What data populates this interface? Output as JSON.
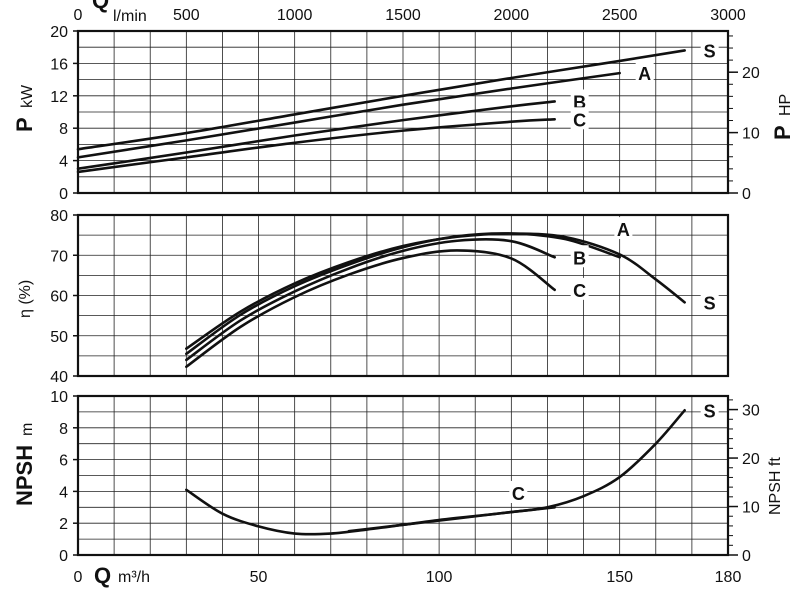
{
  "chart_data": [
    {
      "name": "power",
      "type": "line",
      "title": "",
      "xlabel": "Q m³/h",
      "ylabel": "P kW",
      "ylabel_right": "P HP",
      "xlim": [
        0,
        180
      ],
      "ylim": [
        0,
        20
      ],
      "y_right_lim": [
        0,
        26.82
      ],
      "x_ticks": [
        0,
        50,
        100,
        150,
        180
      ],
      "y_ticks": [
        0,
        4,
        8,
        12,
        16,
        20
      ],
      "y_right_ticks": [
        0,
        10,
        20
      ],
      "grid": true,
      "series": [
        {
          "name": "S",
          "x": [
            0,
            30,
            60,
            90,
            120,
            150,
            168
          ],
          "y": [
            5.4,
            7.4,
            9.7,
            12.0,
            14.2,
            16.3,
            17.6
          ]
        },
        {
          "name": "A",
          "x": [
            0,
            30,
            60,
            90,
            120,
            150
          ],
          "y": [
            4.4,
            6.5,
            8.7,
            10.9,
            12.9,
            14.8
          ]
        },
        {
          "name": "B",
          "x": [
            0,
            30,
            60,
            90,
            120,
            132
          ],
          "y": [
            3.0,
            5.0,
            7.1,
            9.0,
            10.7,
            11.3
          ]
        },
        {
          "name": "C",
          "x": [
            0,
            30,
            60,
            90,
            120,
            132
          ],
          "y": [
            2.6,
            4.4,
            6.2,
            7.7,
            8.8,
            9.1
          ]
        }
      ]
    },
    {
      "name": "efficiency",
      "type": "line",
      "title": "",
      "xlabel": "",
      "ylabel": "η (%)",
      "xlim": [
        0,
        180
      ],
      "ylim": [
        40,
        80
      ],
      "y_ticks": [
        40,
        50,
        60,
        70,
        80
      ],
      "grid": true,
      "series": [
        {
          "name": "S",
          "x": [
            30,
            45,
            60,
            75,
            90,
            105,
            120,
            135,
            150,
            160,
            168
          ],
          "y": [
            46.8,
            56.0,
            63.0,
            68.3,
            72.3,
            74.6,
            75.4,
            74.5,
            70.2,
            64.0,
            58.3
          ]
        },
        {
          "name": "A",
          "x": [
            30,
            45,
            60,
            75,
            90,
            105,
            120,
            135,
            150
          ],
          "y": [
            45.5,
            55.2,
            62.3,
            67.7,
            72.0,
            74.7,
            75.4,
            74.0,
            69.5
          ]
        },
        {
          "name": "B",
          "x": [
            30,
            45,
            60,
            75,
            90,
            105,
            120,
            132
          ],
          "y": [
            44.0,
            53.8,
            61.0,
            66.7,
            71.1,
            73.6,
            73.5,
            69.5
          ]
        },
        {
          "name": "C",
          "x": [
            30,
            45,
            60,
            75,
            90,
            105,
            120,
            132
          ],
          "y": [
            42.3,
            52.2,
            59.6,
            65.2,
            69.3,
            71.2,
            69.2,
            61.4
          ]
        }
      ]
    },
    {
      "name": "npsh",
      "type": "line",
      "title": "",
      "xlabel": "Q m³/h",
      "ylabel": "NPSH m",
      "ylabel_right": "NPSH ft",
      "xlim": [
        0,
        180
      ],
      "ylim": [
        0,
        10
      ],
      "y_right_lim": [
        0,
        32.8
      ],
      "x_ticks": [
        0,
        50,
        100,
        150,
        180
      ],
      "y_ticks": [
        0,
        2,
        4,
        6,
        8,
        10
      ],
      "y_right_ticks": [
        0,
        10,
        20,
        30
      ],
      "grid": true,
      "series": [
        {
          "name": "S",
          "x": [
            30,
            40,
            50,
            60,
            70,
            80,
            90,
            100,
            110,
            120,
            130,
            140,
            150,
            160,
            168
          ],
          "y": [
            4.1,
            2.6,
            1.8,
            1.35,
            1.35,
            1.6,
            1.9,
            2.2,
            2.45,
            2.7,
            3.0,
            3.7,
            4.9,
            7.0,
            9.1
          ]
        },
        {
          "name": "C",
          "x": [
            75,
            90,
            105,
            120,
            132
          ],
          "y": [
            1.5,
            1.9,
            2.3,
            2.7,
            3.0
          ]
        }
      ]
    }
  ],
  "top_axis": {
    "label_q": "Q",
    "label_unit": "l/min",
    "lim": [
      0,
      3000
    ],
    "ticks": [
      "0",
      "500",
      "1000",
      "1500",
      "2000",
      "2500",
      "3000"
    ]
  },
  "labels": {
    "p_main": "P",
    "p_unit": "kW",
    "p_hp_main": "P",
    "p_hp_unit": "HP",
    "eta": "η (%)",
    "npsh_main": "NPSH",
    "npsh_unit": "m",
    "npsh_ft": "NPSH ft",
    "q_main": "Q",
    "q_unit": "m³/h"
  },
  "curve_labels": {
    "power": [
      "S",
      "A",
      "B",
      "C"
    ],
    "efficiency": [
      "A",
      "B",
      "C",
      "S"
    ],
    "npsh": [
      "S",
      "C"
    ]
  }
}
